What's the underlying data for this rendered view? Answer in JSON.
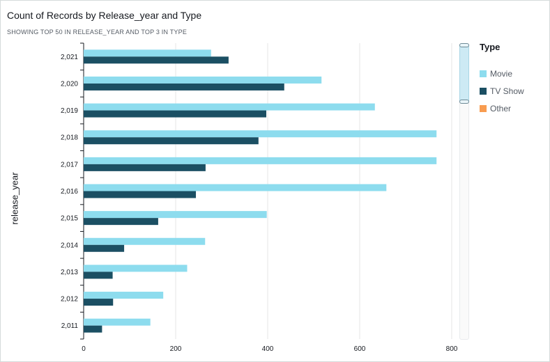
{
  "title": "Count of Records by Release_year and Type",
  "subtitle": "SHOWING TOP 50 IN RELEASE_YEAR AND TOP 3 IN TYPE",
  "colors": {
    "movie": "#8ddcee",
    "tv_show": "#1b4f63",
    "other": "#f89c50"
  },
  "chart_data": {
    "type": "bar",
    "orientation": "horizontal",
    "ylabel": "release_year",
    "xlabel": "",
    "categories": [
      "2,021",
      "2,020",
      "2,019",
      "2,018",
      "2,017",
      "2,016",
      "2,015",
      "2,014",
      "2,013",
      "2,012",
      "2,011"
    ],
    "series": [
      {
        "name": "Movie",
        "values": [
          277,
          517,
          633,
          767,
          767,
          658,
          398,
          264,
          225,
          173,
          145
        ]
      },
      {
        "name": "TV Show",
        "values": [
          315,
          436,
          397,
          380,
          265,
          244,
          162,
          88,
          63,
          64,
          40
        ]
      }
    ],
    "xlim": [
      0,
      800
    ],
    "xticks": [
      "0",
      "200",
      "400",
      "600",
      "800"
    ],
    "grid": true,
    "legend_position": "right"
  },
  "legend": {
    "title": "Type",
    "items": [
      {
        "label": "Movie",
        "color": "#8ddcee"
      },
      {
        "label": "TV Show",
        "color": "#1b4f63"
      },
      {
        "label": "Other",
        "color": "#f89c50"
      }
    ]
  }
}
